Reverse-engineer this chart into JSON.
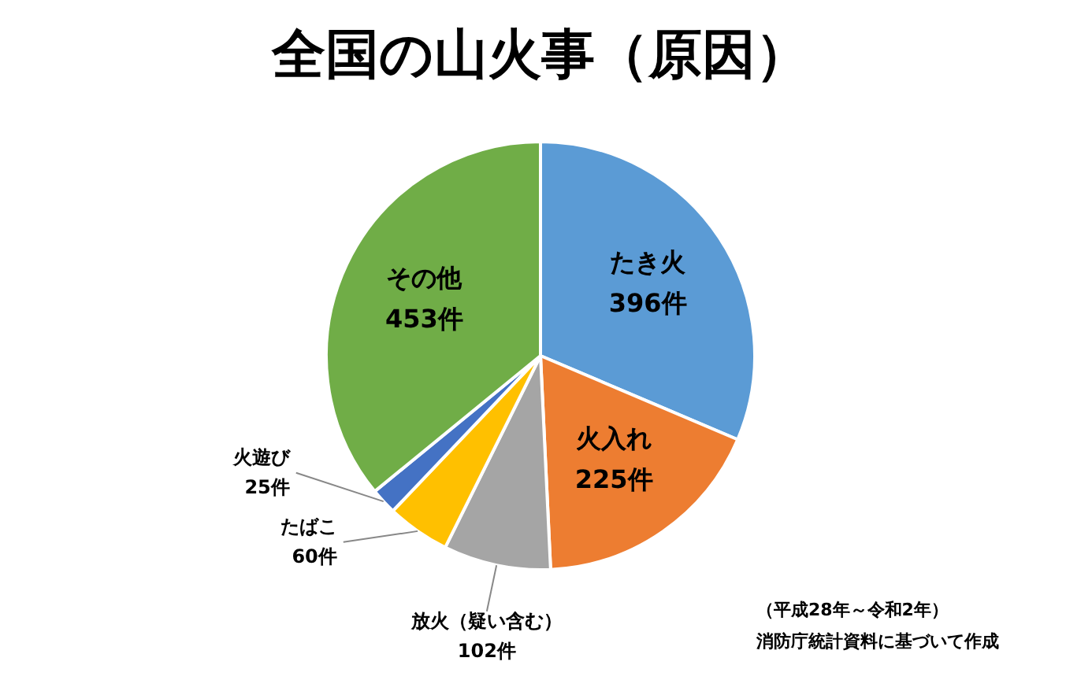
{
  "chart_data": {
    "type": "pie",
    "title": "全国の山火事（原因）",
    "categories": [
      "たき火",
      "火入れ",
      "放火（疑い含む）",
      "たばこ",
      "火遊び",
      "その他"
    ],
    "values": [
      396,
      225,
      102,
      60,
      25,
      453
    ],
    "value_labels": [
      "396件",
      "225件",
      "102件",
      "60件",
      "25件",
      "453件"
    ],
    "colors": [
      "#5b9bd5",
      "#ed7d31",
      "#a5a5a5",
      "#ffc000",
      "#4472c4",
      "#70ad47"
    ],
    "legend": false,
    "annotations": [
      "（平成28年～令和2年）",
      "消防庁統計資料に基づいて作成"
    ]
  }
}
